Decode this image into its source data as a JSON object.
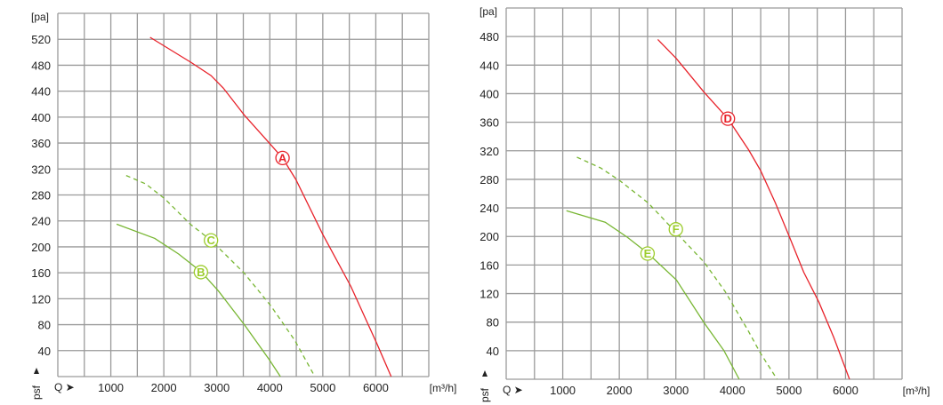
{
  "chart_data": [
    {
      "type": "line",
      "title": "",
      "xlabel": "Q",
      "xunit": "[m³/h]",
      "ylabel": "psf",
      "yunit": "[pa]",
      "xlim": [
        0,
        7000
      ],
      "ylim": [
        0,
        560
      ],
      "grid": true,
      "xgrid_step": 500,
      "ygrid_step": 40,
      "xticks": [
        1000,
        2000,
        3000,
        4000,
        5000,
        6000
      ],
      "yticks": [
        40,
        80,
        120,
        160,
        200,
        240,
        280,
        320,
        360,
        400,
        440,
        480,
        520
      ],
      "series": [
        {
          "name": "A",
          "color": "#e8222a",
          "dash": false,
          "label_at": [
            4240,
            337
          ],
          "x": [
            1740,
            2520,
            2890,
            3120,
            3520,
            3990,
            4240,
            4490,
            5000,
            5530,
            6020,
            6290
          ],
          "y": [
            523,
            484,
            464,
            445,
            403,
            360,
            337,
            304,
            219,
            139,
            51,
            0
          ]
        },
        {
          "name": "C",
          "color": "#78b633",
          "dash": true,
          "label_at": [
            2890,
            210
          ],
          "x": [
            1290,
            1660,
            2020,
            2500,
            2890,
            3510,
            4020,
            4470,
            4850
          ],
          "y": [
            310,
            297,
            274,
            235,
            210,
            160,
            109,
            56,
            0
          ]
        },
        {
          "name": "B",
          "color": "#78b633",
          "dash": false,
          "label_at": [
            2700,
            161
          ],
          "x": [
            1110,
            1830,
            2280,
            2700,
            3030,
            3520,
            3990,
            4200
          ],
          "y": [
            235,
            213,
            189,
            162,
            132,
            80,
            26,
            0
          ]
        }
      ]
    },
    {
      "type": "line",
      "title": "",
      "xlabel": "Q",
      "xunit": "[m³/h]",
      "ylabel": "psf",
      "yunit": "[pa]",
      "xlim": [
        0,
        7000
      ],
      "ylim": [
        0,
        520
      ],
      "grid": true,
      "xgrid_step": 500,
      "ygrid_step": 40,
      "xticks": [
        1000,
        2000,
        3000,
        4000,
        5000,
        6000
      ],
      "yticks": [
        40,
        80,
        120,
        160,
        200,
        240,
        280,
        320,
        360,
        400,
        440,
        480
      ],
      "series": [
        {
          "name": "D",
          "color": "#e8222a",
          "dash": false,
          "label_at": [
            3920,
            365
          ],
          "x": [
            2680,
            3010,
            3500,
            3920,
            4290,
            4500,
            4760,
            5010,
            5260,
            5530,
            5790,
            6070
          ],
          "y": [
            476,
            449,
            402,
            365,
            321,
            292,
            247,
            199,
            150,
            108,
            59,
            0
          ]
        },
        {
          "name": "F",
          "color": "#78b633",
          "dash": true,
          "label_at": [
            3000,
            210
          ],
          "x": [
            1250,
            1670,
            2010,
            2510,
            3010,
            3500,
            3870,
            4270,
            4500,
            4790
          ],
          "y": [
            311,
            296,
            278,
            247,
            205,
            164,
            123,
            69,
            36,
            0
          ]
        },
        {
          "name": "E",
          "color": "#78b633",
          "dash": false,
          "label_at": [
            2500,
            176
          ],
          "x": [
            1065,
            1750,
            2140,
            2510,
            3010,
            3500,
            3850,
            4120
          ],
          "y": [
            236,
            220,
            199,
            176,
            139,
            79,
            40,
            0
          ]
        }
      ]
    }
  ]
}
